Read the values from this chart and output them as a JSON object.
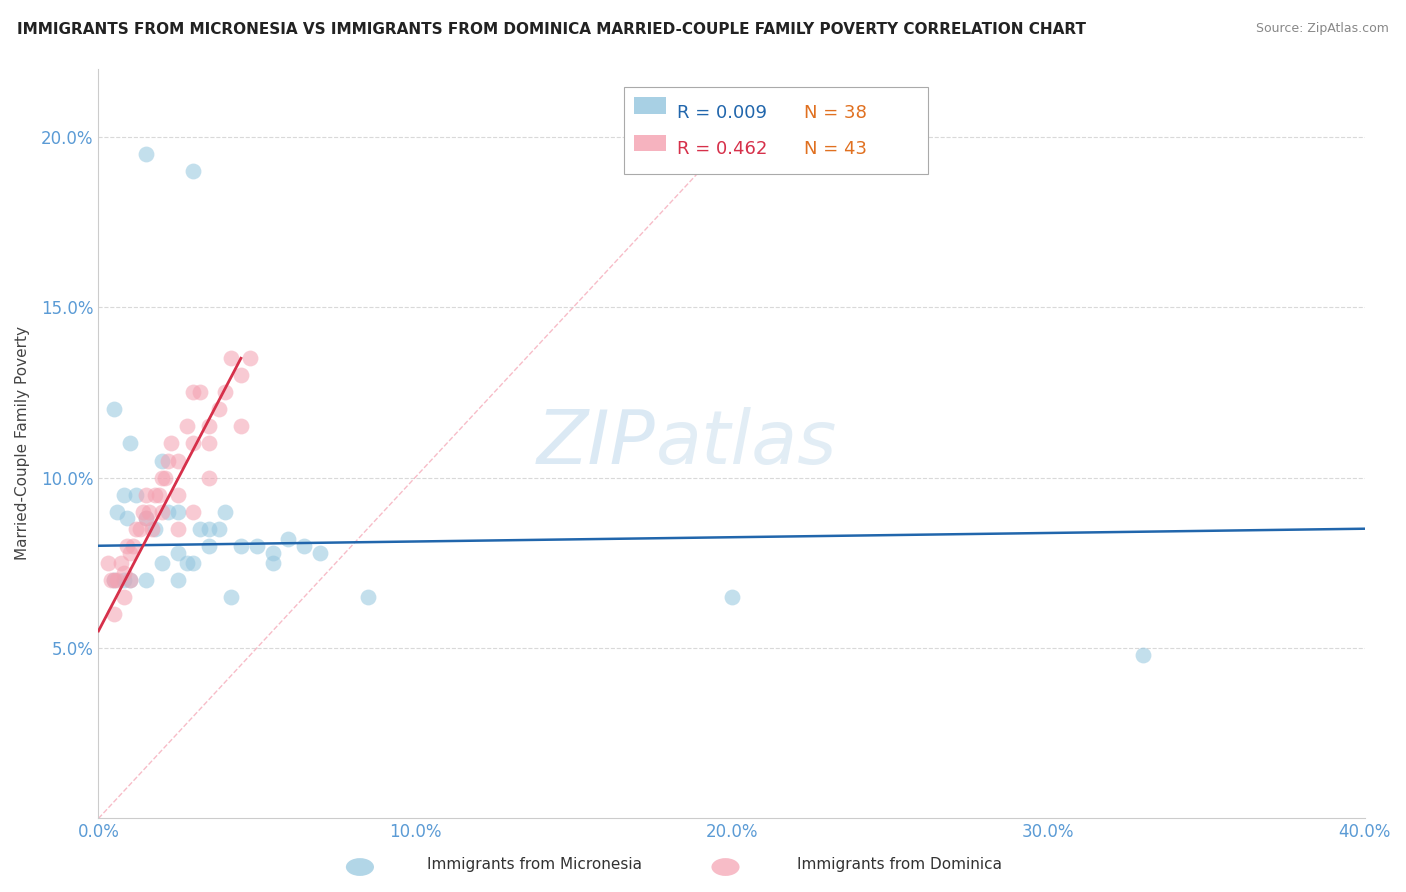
{
  "title": "IMMIGRANTS FROM MICRONESIA VS IMMIGRANTS FROM DOMINICA MARRIED-COUPLE FAMILY POVERTY CORRELATION CHART",
  "source": "Source: ZipAtlas.com",
  "ylabel": "Married-Couple Family Poverty",
  "xlim": [
    0.0,
    40.0
  ],
  "ylim": [
    0.0,
    22.0
  ],
  "yticks": [
    5.0,
    10.0,
    15.0,
    20.0
  ],
  "ytick_labels": [
    "5.0%",
    "10.0%",
    "15.0%",
    "20.0%"
  ],
  "xticks": [
    0.0,
    10.0,
    20.0,
    30.0,
    40.0
  ],
  "xtick_labels": [
    "0.0%",
    "10.0%",
    "20.0%",
    "30.0%",
    "40.0%"
  ],
  "legend_R1": "R = 0.009",
  "legend_N1": "N = 38",
  "legend_R2": "R = 0.462",
  "legend_N2": "N = 43",
  "watermark_zip": "ZIP",
  "watermark_atlas": "atlas",
  "blue_color": "#92c5de",
  "pink_color": "#f4a0b0",
  "blue_line_color": "#2166ac",
  "pink_line_color": "#d6304a",
  "diag_color": "#f4a0b0",
  "grid_color": "#d9d9d9",
  "micronesia_x": [
    1.5,
    3.0,
    0.5,
    1.0,
    2.0,
    0.8,
    1.2,
    0.6,
    0.9,
    1.5,
    2.5,
    3.5,
    4.5,
    2.2,
    1.8,
    3.8,
    4.0,
    5.0,
    5.5,
    6.0,
    3.0,
    2.0,
    1.0,
    0.5,
    0.8,
    1.5,
    2.5,
    3.5,
    4.2,
    5.5,
    6.5,
    7.0,
    8.5,
    20.0,
    33.0,
    2.5,
    3.2,
    2.8
  ],
  "micronesia_y": [
    19.5,
    19.0,
    12.0,
    11.0,
    10.5,
    9.5,
    9.5,
    9.0,
    8.8,
    8.8,
    9.0,
    8.5,
    8.0,
    9.0,
    8.5,
    8.5,
    9.0,
    8.0,
    7.8,
    8.2,
    7.5,
    7.5,
    7.0,
    7.0,
    7.0,
    7.0,
    7.0,
    8.0,
    6.5,
    7.5,
    8.0,
    7.8,
    6.5,
    6.5,
    4.8,
    7.8,
    8.5,
    7.5
  ],
  "dominica_x": [
    0.3,
    0.4,
    0.5,
    0.6,
    0.7,
    0.8,
    0.9,
    1.0,
    1.1,
    1.2,
    1.3,
    1.4,
    1.5,
    1.6,
    1.7,
    1.8,
    1.9,
    2.0,
    2.1,
    2.2,
    2.3,
    2.5,
    2.5,
    2.8,
    3.0,
    3.0,
    3.2,
    3.5,
    3.5,
    3.8,
    4.0,
    4.2,
    4.5,
    4.8,
    0.5,
    0.8,
    1.0,
    1.5,
    2.0,
    2.5,
    3.0,
    3.5,
    4.5
  ],
  "dominica_y": [
    7.5,
    7.0,
    7.0,
    7.0,
    7.5,
    7.2,
    8.0,
    7.8,
    8.0,
    8.5,
    8.5,
    9.0,
    8.8,
    9.0,
    8.5,
    9.5,
    9.5,
    9.0,
    10.0,
    10.5,
    11.0,
    9.5,
    10.5,
    11.5,
    12.5,
    11.0,
    12.5,
    11.5,
    11.0,
    12.0,
    12.5,
    13.5,
    13.0,
    13.5,
    6.0,
    6.5,
    7.0,
    9.5,
    10.0,
    8.5,
    9.0,
    10.0,
    11.5
  ],
  "blue_line_x0": 0.0,
  "blue_line_x1": 40.0,
  "blue_line_y0": 8.0,
  "blue_line_y1": 8.5,
  "pink_line_x0": 0.0,
  "pink_line_x1": 4.5,
  "pink_line_y0": 5.5,
  "pink_line_y1": 13.5
}
